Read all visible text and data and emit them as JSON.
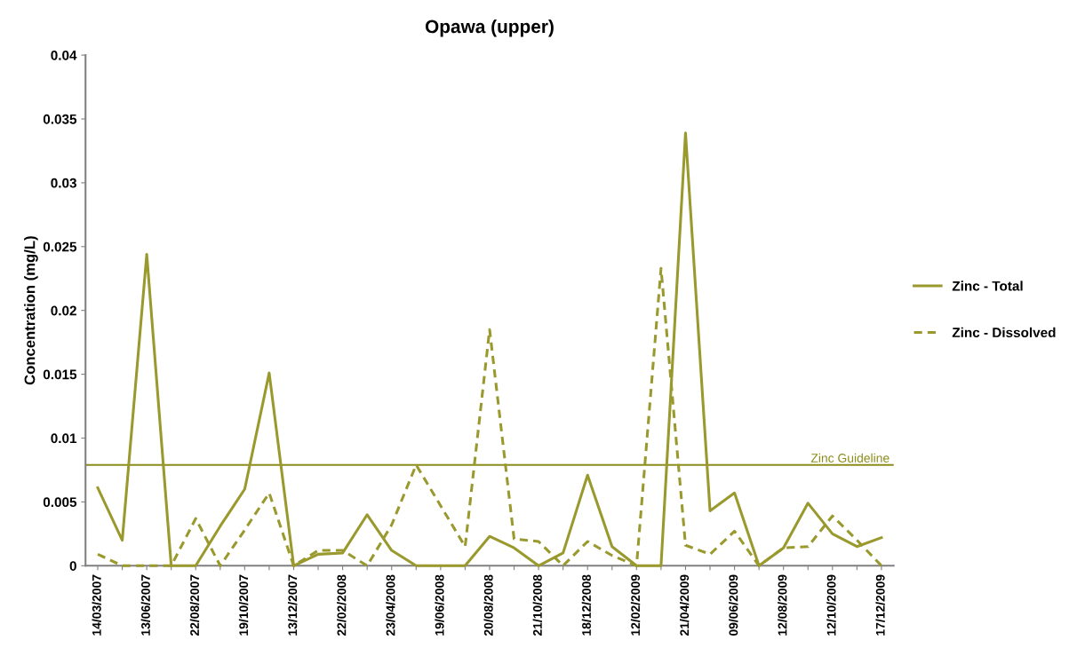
{
  "chart_data": {
    "type": "line",
    "title": "Opawa (upper)",
    "ylabel": "Concentration (mg/L)",
    "categories": [
      "14/03/2007",
      null,
      "13/06/2007",
      null,
      "22/08/2007",
      null,
      "19/10/2007",
      null,
      "13/12/2007",
      null,
      "22/02/2008",
      null,
      "23/04/2008",
      null,
      "19/06/2008",
      null,
      "20/08/2008",
      null,
      "21/10/2008",
      null,
      "18/12/2008",
      null,
      "12/02/2009",
      null,
      "21/04/2009",
      null,
      "09/06/2009",
      null,
      "12/08/2009",
      null,
      "12/10/2009",
      null,
      "17/12/2009"
    ],
    "series": [
      {
        "name": "Zinc - Total",
        "color": "#99992e",
        "line_style": "solid",
        "values": [
          0.0061,
          0.002,
          0.0244,
          0,
          0,
          0.0031,
          0.006,
          0.0151,
          0,
          0.0009,
          0.001,
          0.004,
          0.0012,
          0,
          0,
          0,
          0.0023,
          0.0014,
          0,
          0.001,
          0.0071,
          0.0015,
          0,
          0,
          0.0339,
          0.0043,
          0.0057,
          0,
          0.0014,
          0.0049,
          0.0025,
          0.0015,
          0.0022
        ]
      },
      {
        "name": "Zinc - Dissolved",
        "color": "#99992e",
        "line_style": "dashed",
        "values": [
          0.0009,
          0,
          0,
          0,
          0.0037,
          0,
          0.0028,
          0.0057,
          0,
          0.0012,
          0.0012,
          0,
          0.0032,
          0.0079,
          0.0047,
          0.0015,
          0.0185,
          0.0021,
          0.0019,
          0,
          0.0019,
          0.0008,
          0,
          0.0233,
          0.0016,
          0.0009,
          0.0027,
          0,
          0.0014,
          0.0015,
          0.0039,
          0.002,
          0
        ]
      }
    ],
    "ylim": [
      0,
      0.04
    ],
    "yticks": [
      0,
      0.005,
      0.01,
      0.015,
      0.02,
      0.025,
      0.03,
      0.035,
      0.04
    ],
    "ref_lines": [
      {
        "axis": "y",
        "value": 0.0079,
        "label": "Zinc Guideline",
        "color": "#8c8c1a"
      }
    ],
    "legend": "right",
    "grid": false
  }
}
